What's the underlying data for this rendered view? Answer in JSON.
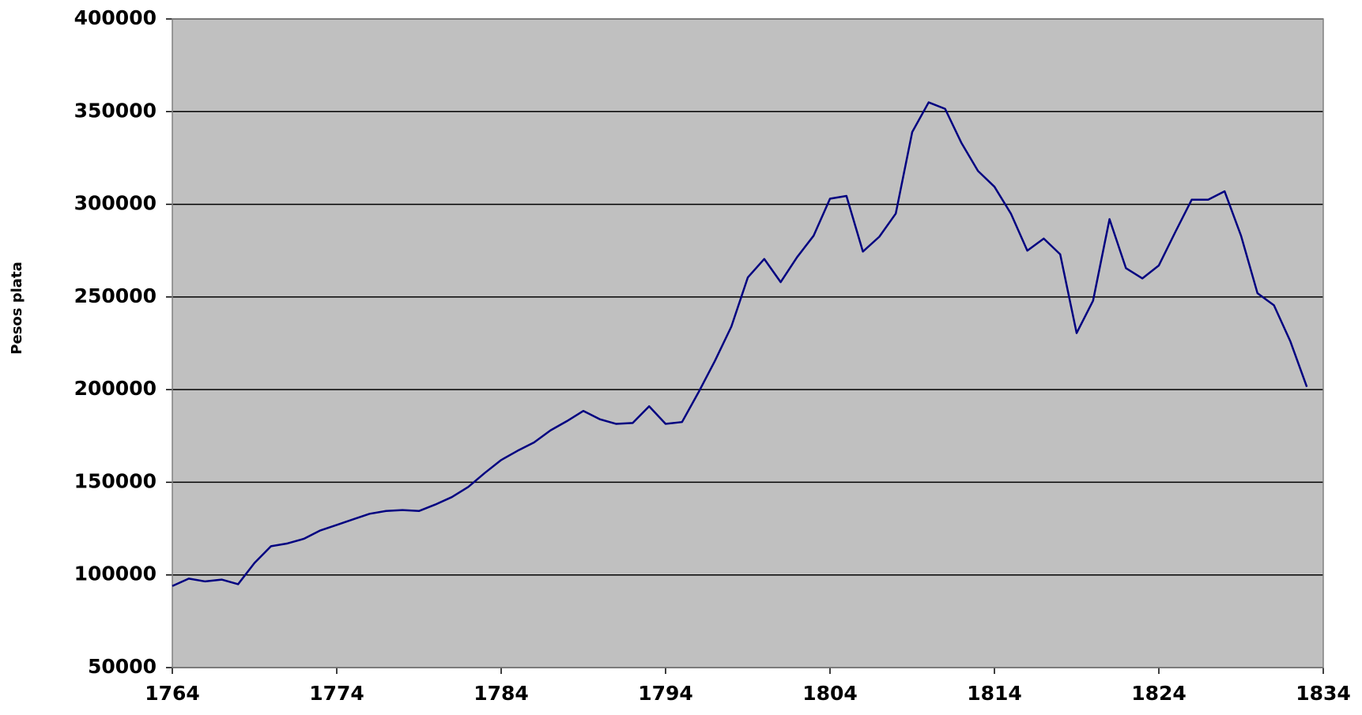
{
  "chart_data": {
    "type": "line",
    "y_label": "Pesos plata",
    "x": [
      1764,
      1765,
      1766,
      1767,
      1768,
      1769,
      1770,
      1771,
      1772,
      1773,
      1774,
      1775,
      1776,
      1777,
      1778,
      1779,
      1780,
      1781,
      1782,
      1783,
      1784,
      1785,
      1786,
      1787,
      1788,
      1789,
      1790,
      1791,
      1792,
      1793,
      1794,
      1795,
      1796,
      1797,
      1798,
      1799,
      1800,
      1801,
      1802,
      1803,
      1804,
      1805,
      1806,
      1807,
      1808,
      1809,
      1810,
      1811,
      1812,
      1813,
      1814,
      1815,
      1816,
      1817,
      1818,
      1819,
      1820,
      1821,
      1822,
      1823,
      1824,
      1825,
      1826,
      1827,
      1828,
      1829,
      1830,
      1831,
      1832,
      1833
    ],
    "series": [
      {
        "color": "#000080",
        "values": [
          94000,
          98000,
          96500,
          97500,
          95000,
          106500,
          115500,
          117000,
          119500,
          124000,
          127000,
          130000,
          133000,
          134500,
          135000,
          134500,
          138000,
          142000,
          147500,
          155000,
          162000,
          167000,
          171500,
          178000,
          183000,
          188500,
          184000,
          181500,
          182000,
          191000,
          181500,
          182500,
          198500,
          215500,
          234000,
          260500,
          270500,
          258000,
          271500,
          283000,
          303000,
          304500,
          274500,
          282500,
          295000,
          339000,
          355000,
          351500,
          333000,
          318000,
          309500,
          295000,
          275000,
          281500,
          273000,
          230500,
          248000,
          292000,
          265500,
          260000,
          267000,
          285000,
          302500,
          302500,
          307000,
          283000,
          252000,
          245500,
          226000,
          201500
        ]
      }
    ],
    "xlim": [
      1764,
      1834
    ],
    "xticks": [
      1764,
      1774,
      1784,
      1794,
      1804,
      1814,
      1824,
      1834
    ],
    "ylim": [
      50000,
      400000
    ],
    "yticks": [
      50000,
      100000,
      150000,
      200000,
      250000,
      300000,
      350000,
      400000
    ],
    "grid": true,
    "plot_background": "#c0c0c0"
  }
}
